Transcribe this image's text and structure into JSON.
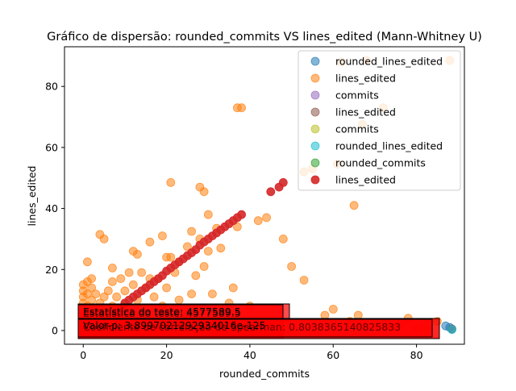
{
  "chart_data": {
    "type": "scatter",
    "title": "Gráfico de dispersão: rounded_commits VS lines_edited (Mann-Whitney U)",
    "xlabel": "rounded_commits",
    "ylabel": "lines_edited",
    "xlim": [
      -4.5,
      91.5
    ],
    "ylim": [
      -4.5,
      93
    ],
    "xticks": [
      0,
      20,
      40,
      60,
      80
    ],
    "yticks": [
      0,
      20,
      40,
      60,
      80
    ],
    "grid": false,
    "legend_position": "top-right",
    "series": [
      {
        "name": "rounded_lines_edited",
        "color": "#1f77b4",
        "alpha": 0.55,
        "points": [
          [
            88,
            1
          ],
          [
            88.5,
            0.5
          ],
          [
            87,
            1.5
          ]
        ]
      },
      {
        "name": "lines_edited",
        "color": "#ff7f0e",
        "alpha": 0.55,
        "points": [
          [
            0,
            0
          ],
          [
            0,
            2
          ],
          [
            0,
            4
          ],
          [
            0,
            6
          ],
          [
            0,
            9
          ],
          [
            0,
            11
          ],
          [
            0,
            13
          ],
          [
            0,
            15
          ],
          [
            1,
            1
          ],
          [
            1,
            3
          ],
          [
            1,
            8
          ],
          [
            1,
            12
          ],
          [
            1,
            16
          ],
          [
            1,
            22.5
          ],
          [
            2,
            0.5
          ],
          [
            2,
            5
          ],
          [
            2,
            10
          ],
          [
            2,
            14
          ],
          [
            2,
            17
          ],
          [
            3,
            2
          ],
          [
            3,
            7
          ],
          [
            3,
            12
          ],
          [
            4,
            31.5
          ],
          [
            4,
            4
          ],
          [
            4,
            9
          ],
          [
            5,
            30
          ],
          [
            5,
            1
          ],
          [
            5,
            6
          ],
          [
            5,
            11
          ],
          [
            6,
            3
          ],
          [
            6,
            13
          ],
          [
            7,
            20.5
          ],
          [
            7,
            8
          ],
          [
            7,
            16
          ],
          [
            8,
            2
          ],
          [
            8,
            11
          ],
          [
            9,
            6
          ],
          [
            9,
            17
          ],
          [
            10,
            13
          ],
          [
            10,
            9
          ],
          [
            11,
            19
          ],
          [
            11,
            4
          ],
          [
            12,
            26
          ],
          [
            12,
            15
          ],
          [
            13,
            10
          ],
          [
            13,
            25
          ],
          [
            14,
            19
          ],
          [
            14,
            2
          ],
          [
            15,
            14
          ],
          [
            16,
            29
          ],
          [
            16,
            17
          ],
          [
            17,
            11
          ],
          [
            18,
            17
          ],
          [
            19,
            31
          ],
          [
            19,
            8
          ],
          [
            20,
            24
          ],
          [
            20,
            14
          ],
          [
            21,
            48.5
          ],
          [
            21,
            24
          ],
          [
            22,
            19
          ],
          [
            23,
            22.5
          ],
          [
            23,
            10
          ],
          [
            25,
            27.5
          ],
          [
            25,
            5
          ],
          [
            26,
            32.5
          ],
          [
            26,
            12
          ],
          [
            27,
            18
          ],
          [
            28,
            47
          ],
          [
            28,
            30
          ],
          [
            29,
            45.5
          ],
          [
            29,
            21
          ],
          [
            30,
            38
          ],
          [
            30,
            26
          ],
          [
            31,
            12
          ],
          [
            32,
            33.5
          ],
          [
            33,
            27
          ],
          [
            35,
            9
          ],
          [
            36,
            14
          ],
          [
            37,
            73
          ],
          [
            37,
            34
          ],
          [
            38,
            73
          ],
          [
            40,
            8
          ],
          [
            42,
            36
          ],
          [
            44,
            37
          ],
          [
            48,
            30
          ],
          [
            50,
            21
          ],
          [
            53,
            16.5
          ],
          [
            53,
            52
          ],
          [
            55,
            53
          ],
          [
            58,
            5
          ],
          [
            60,
            7
          ],
          [
            61,
            54.5
          ],
          [
            62,
            88
          ],
          [
            64,
            3
          ],
          [
            65,
            41
          ],
          [
            66,
            5
          ],
          [
            67,
            67.5
          ],
          [
            68,
            88.5
          ],
          [
            70,
            2
          ],
          [
            72,
            73
          ],
          [
            74,
            1
          ],
          [
            76,
            2
          ],
          [
            78,
            4
          ],
          [
            80,
            1
          ],
          [
            82,
            0.5
          ],
          [
            85,
            3
          ],
          [
            88,
            88.5
          ]
        ]
      },
      {
        "name": "commits",
        "color": "#9467bd",
        "alpha": 0.55,
        "points": []
      },
      {
        "name": "lines_edited",
        "color": "#8c564b",
        "alpha": 0.55,
        "points": [
          [
            88.5,
            0.5
          ]
        ]
      },
      {
        "name": "commits",
        "color": "#bcbd22",
        "alpha": 0.55,
        "points": []
      },
      {
        "name": "rounded_lines_edited",
        "color": "#17becf",
        "alpha": 0.55,
        "points": [
          [
            88.5,
            0.3
          ]
        ]
      },
      {
        "name": "rounded_commits",
        "color": "#2ca02c",
        "alpha": 0.55,
        "points": []
      },
      {
        "name": "lines_edited",
        "color": "#d62728",
        "alpha": 0.9,
        "points": [
          [
            8,
            6
          ],
          [
            9,
            7
          ],
          [
            10,
            9
          ],
          [
            11,
            10
          ],
          [
            12,
            11
          ],
          [
            13,
            12
          ],
          [
            14,
            13
          ],
          [
            15,
            14
          ],
          [
            16,
            15
          ],
          [
            17,
            16
          ],
          [
            18,
            17
          ],
          [
            19,
            18
          ],
          [
            20,
            19.5
          ],
          [
            21,
            20.5
          ],
          [
            22,
            21.5
          ],
          [
            23,
            22.5
          ],
          [
            24,
            23.5
          ],
          [
            25,
            24.5
          ],
          [
            26,
            25.5
          ],
          [
            27,
            26.5
          ],
          [
            28,
            28
          ],
          [
            29,
            29
          ],
          [
            30,
            30
          ],
          [
            31,
            31
          ],
          [
            32,
            32
          ],
          [
            33,
            33
          ],
          [
            34,
            34
          ],
          [
            35,
            35
          ],
          [
            36,
            36
          ],
          [
            37,
            37
          ],
          [
            38,
            38
          ],
          [
            45,
            45.5
          ],
          [
            47,
            47
          ],
          [
            48,
            48.5
          ]
        ]
      }
    ],
    "annotations": [
      {
        "text": "Estatística do teste: 4577589.5",
        "box_color": "#ff0000"
      },
      {
        "text": "Estatística do teste: 4577589.5",
        "box_color": "#ff0000"
      },
      {
        "text": "Valor-p: 3.8997021292934016e-125",
        "box_color": "#ff0000"
      },
      {
        "text": "Coeficiente de correlação de Spearman: 0.8038365140825833",
        "box_color": "#ff0000"
      }
    ]
  }
}
